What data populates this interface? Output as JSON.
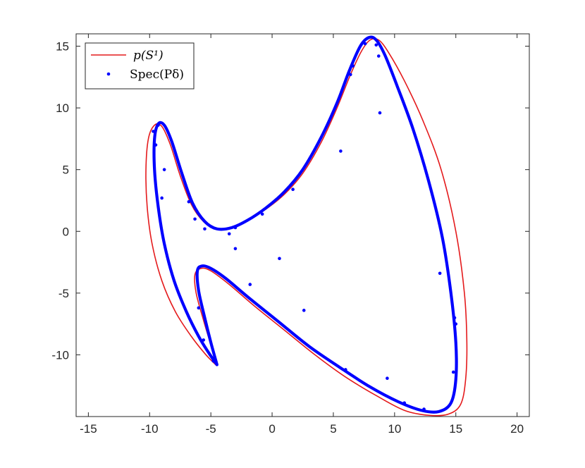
{
  "chart_data": {
    "type": "scatter",
    "title": "",
    "xlabel": "",
    "ylabel": "",
    "xlim": [
      -16,
      21
    ],
    "ylim": [
      -15,
      16
    ],
    "xticks": [
      -15,
      -10,
      -5,
      0,
      5,
      10,
      15,
      20
    ],
    "yticks": [
      -10,
      -5,
      0,
      5,
      10,
      15
    ],
    "xtick_labels": [
      "-15",
      "-10",
      "-5",
      "0",
      "5",
      "10",
      "15",
      "20"
    ],
    "ytick_labels": [
      "-10",
      "-5",
      "0",
      "5",
      "10",
      "15"
    ],
    "grid": false,
    "legend_position": "top-left",
    "legend": {
      "curve_label": "p(S¹)",
      "points_label": "Spec(Pδ)"
    },
    "colors": {
      "curve": "#e41a1c",
      "thick_curve": "#0000ff",
      "points": "#0000ff",
      "axis": "#262626"
    },
    "series": [
      {
        "name": "p(S¹)",
        "style": "line",
        "points": [
          [
            -4.5,
            -10.9
          ],
          [
            -5.4,
            -10.0
          ],
          [
            -6.6,
            -8.5
          ],
          [
            -7.9,
            -6.5
          ],
          [
            -9.0,
            -4.0
          ],
          [
            -9.8,
            -1.0
          ],
          [
            -10.2,
            2.0
          ],
          [
            -10.3,
            5.0
          ],
          [
            -10.1,
            7.5
          ],
          [
            -9.6,
            8.6
          ],
          [
            -9.0,
            8.5
          ],
          [
            -8.3,
            7.0
          ],
          [
            -7.5,
            4.5
          ],
          [
            -6.6,
            2.2
          ],
          [
            -5.6,
            0.8
          ],
          [
            -4.5,
            0.2
          ],
          [
            -3.3,
            0.3
          ],
          [
            -2.0,
            0.9
          ],
          [
            -0.5,
            1.8
          ],
          [
            1.0,
            3.0
          ],
          [
            2.5,
            4.7
          ],
          [
            4.0,
            7.2
          ],
          [
            5.3,
            10.0
          ],
          [
            6.4,
            12.7
          ],
          [
            7.3,
            14.6
          ],
          [
            8.0,
            15.5
          ],
          [
            8.7,
            15.5
          ],
          [
            9.5,
            14.5
          ],
          [
            10.8,
            12.2
          ],
          [
            12.3,
            9.0
          ],
          [
            13.8,
            5.0
          ],
          [
            15.0,
            0.0
          ],
          [
            15.7,
            -5.0
          ],
          [
            15.9,
            -9.0
          ],
          [
            15.8,
            -12.0
          ],
          [
            15.4,
            -14.0
          ],
          [
            14.4,
            -14.8
          ],
          [
            12.8,
            -14.9
          ],
          [
            10.8,
            -14.5
          ],
          [
            8.5,
            -13.3
          ],
          [
            6.0,
            -11.8
          ],
          [
            3.5,
            -10.0
          ],
          [
            1.0,
            -8.0
          ],
          [
            -1.5,
            -6.0
          ],
          [
            -3.5,
            -4.3
          ],
          [
            -5.0,
            -3.2
          ],
          [
            -5.8,
            -3.0
          ],
          [
            -6.3,
            -3.5
          ],
          [
            -6.2,
            -5.0
          ],
          [
            -5.6,
            -7.2
          ],
          [
            -5.0,
            -9.2
          ],
          [
            -4.5,
            -10.9
          ]
        ]
      },
      {
        "name": "",
        "style": "thick-line",
        "points": [
          [
            -4.5,
            -10.8
          ],
          [
            -5.2,
            -9.8
          ],
          [
            -6.0,
            -8.5
          ],
          [
            -7.0,
            -6.5
          ],
          [
            -8.0,
            -4.0
          ],
          [
            -8.8,
            -1.0
          ],
          [
            -9.3,
            2.0
          ],
          [
            -9.6,
            5.0
          ],
          [
            -9.6,
            7.5
          ],
          [
            -9.3,
            8.7
          ],
          [
            -8.8,
            8.6
          ],
          [
            -8.2,
            7.3
          ],
          [
            -7.4,
            4.8
          ],
          [
            -6.5,
            2.3
          ],
          [
            -5.5,
            0.8
          ],
          [
            -4.5,
            0.2
          ],
          [
            -3.3,
            0.3
          ],
          [
            -2.0,
            0.9
          ],
          [
            -0.5,
            1.9
          ],
          [
            1.0,
            3.2
          ],
          [
            2.5,
            5.0
          ],
          [
            4.0,
            7.6
          ],
          [
            5.3,
            10.4
          ],
          [
            6.3,
            13.0
          ],
          [
            7.2,
            15.0
          ],
          [
            7.9,
            15.7
          ],
          [
            8.5,
            15.5
          ],
          [
            9.2,
            14.3
          ],
          [
            10.2,
            11.8
          ],
          [
            11.5,
            8.3
          ],
          [
            12.8,
            4.0
          ],
          [
            13.9,
            -0.5
          ],
          [
            14.6,
            -5.0
          ],
          [
            15.0,
            -9.0
          ],
          [
            15.0,
            -12.0
          ],
          [
            14.6,
            -13.9
          ],
          [
            13.6,
            -14.6
          ],
          [
            12.2,
            -14.5
          ],
          [
            10.3,
            -13.8
          ],
          [
            8.0,
            -12.6
          ],
          [
            5.5,
            -11.0
          ],
          [
            3.0,
            -9.3
          ],
          [
            0.5,
            -7.3
          ],
          [
            -2.0,
            -5.3
          ],
          [
            -3.8,
            -3.8
          ],
          [
            -5.0,
            -3.0
          ],
          [
            -5.7,
            -2.8
          ],
          [
            -6.1,
            -3.2
          ],
          [
            -6.0,
            -4.8
          ],
          [
            -5.5,
            -7.0
          ],
          [
            -5.0,
            -9.0
          ],
          [
            -4.5,
            -10.8
          ]
        ]
      },
      {
        "name": "Spec(Pδ)",
        "style": "points",
        "points": [
          [
            7.6,
            15.2
          ],
          [
            8.5,
            15.1
          ],
          [
            8.7,
            14.2
          ],
          [
            6.6,
            13.4
          ],
          [
            6.4,
            12.7
          ],
          [
            8.8,
            9.6
          ],
          [
            5.6,
            6.5
          ],
          [
            1.7,
            3.4
          ],
          [
            -0.8,
            1.4
          ],
          [
            -3.0,
            0.3
          ],
          [
            -3.5,
            -0.2
          ],
          [
            -5.5,
            0.2
          ],
          [
            -6.3,
            1.0
          ],
          [
            -6.8,
            2.4
          ],
          [
            -9.0,
            2.7
          ],
          [
            -8.8,
            5.0
          ],
          [
            -9.5,
            7.0
          ],
          [
            -9.3,
            8.6
          ],
          [
            -9.7,
            8.1
          ],
          [
            -3.0,
            -1.4
          ],
          [
            0.6,
            -2.2
          ],
          [
            -1.8,
            -4.3
          ],
          [
            2.6,
            -6.4
          ],
          [
            -6.0,
            -6.2
          ],
          [
            -5.6,
            -8.8
          ],
          [
            13.7,
            -3.4
          ],
          [
            14.9,
            -7.0
          ],
          [
            15.0,
            -7.5
          ],
          [
            14.8,
            -11.4
          ],
          [
            9.4,
            -11.9
          ],
          [
            6.0,
            -11.2
          ],
          [
            10.8,
            -13.9
          ],
          [
            12.4,
            -14.4
          ],
          [
            -4.8,
            -10.5
          ]
        ]
      }
    ]
  }
}
